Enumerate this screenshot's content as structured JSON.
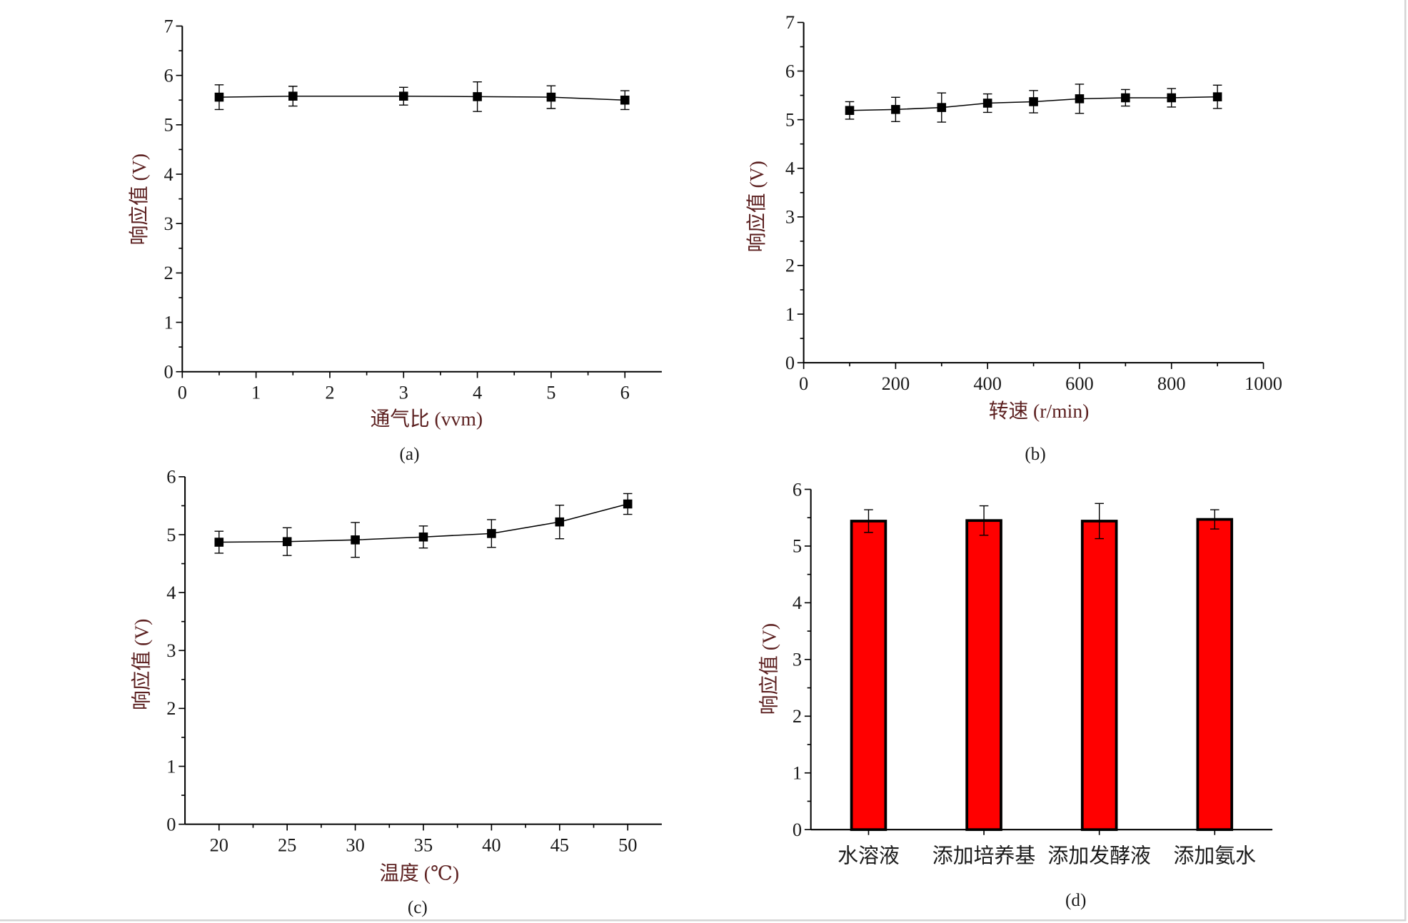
{
  "chart_data": [
    {
      "panel": "(a)",
      "type": "line",
      "xlabel": "通气比 (vvm)",
      "ylabel": "响应值 (V)",
      "xlim": [
        0,
        6.5
      ],
      "ylim": [
        0,
        7
      ],
      "xticks": [
        0,
        1,
        2,
        3,
        4,
        5,
        6
      ],
      "yticks": [
        0,
        1,
        2,
        3,
        4,
        5,
        6,
        7
      ],
      "series": [
        {
          "x": [
            0.5,
            1.5,
            3,
            4,
            5,
            6
          ],
          "y": [
            5.56,
            5.58,
            5.58,
            5.57,
            5.56,
            5.5
          ],
          "error": [
            0.25,
            0.2,
            0.18,
            0.3,
            0.23,
            0.19
          ]
        }
      ]
    },
    {
      "panel": "(b)",
      "type": "line",
      "xlabel": "转速 (r/min)",
      "ylabel": "响应值 (V)",
      "xlim": [
        0,
        1000
      ],
      "ylim": [
        0,
        7
      ],
      "xticks": [
        0,
        200,
        400,
        600,
        800,
        1000
      ],
      "yticks": [
        0,
        1,
        2,
        3,
        4,
        5,
        6,
        7
      ],
      "series": [
        {
          "x": [
            100,
            200,
            300,
            400,
            500,
            600,
            700,
            800,
            900
          ],
          "y": [
            5.19,
            5.21,
            5.25,
            5.34,
            5.37,
            5.43,
            5.45,
            5.45,
            5.47
          ],
          "error": [
            0.18,
            0.25,
            0.3,
            0.19,
            0.23,
            0.3,
            0.17,
            0.19,
            0.24
          ]
        }
      ]
    },
    {
      "panel": "(c)",
      "type": "line",
      "xlabel": "温度 (℃)",
      "ylabel": "响应值 (V)",
      "xlim": [
        17.5,
        52.5
      ],
      "ylim": [
        0,
        6
      ],
      "xticks": [
        20,
        25,
        30,
        35,
        40,
        45,
        50
      ],
      "yticks": [
        0,
        1,
        2,
        3,
        4,
        5,
        6
      ],
      "series": [
        {
          "x": [
            20,
            25,
            30,
            35,
            40,
            45,
            50
          ],
          "y": [
            4.87,
            4.88,
            4.91,
            4.96,
            5.02,
            5.22,
            5.53
          ],
          "error": [
            0.19,
            0.24,
            0.3,
            0.19,
            0.24,
            0.29,
            0.18
          ]
        }
      ]
    },
    {
      "panel": "(d)",
      "type": "bar",
      "ylabel": "响应值 (V)",
      "ylim": [
        0,
        6
      ],
      "yticks": [
        0,
        1,
        2,
        3,
        4,
        5,
        6
      ],
      "categories": [
        "水溶液",
        "添加培养基",
        "添加发酵液",
        "添加氨水"
      ],
      "values": [
        5.44,
        5.45,
        5.44,
        5.47
      ],
      "error": [
        0.2,
        0.26,
        0.31,
        0.17
      ],
      "bar_color": "#ff0000"
    }
  ]
}
